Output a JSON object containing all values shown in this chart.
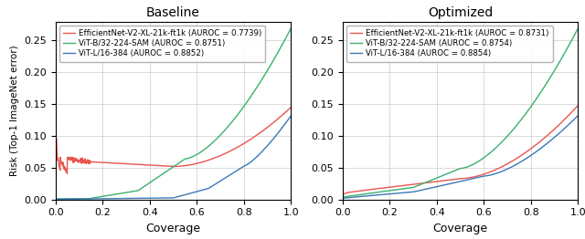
{
  "title_left": "Baseline",
  "title_right": "Optimized",
  "xlabel": "Coverage",
  "ylabel": "Risk (Top-1 ImageNet error)",
  "ylim": [
    0,
    0.28
  ],
  "xlim": [
    0.0,
    1.0
  ],
  "yticks": [
    0.0,
    0.05,
    0.1,
    0.15,
    0.2,
    0.25
  ],
  "xticks": [
    0.0,
    0.2,
    0.4,
    0.6,
    0.8,
    1.0
  ],
  "colors": {
    "red": "#e8554e",
    "green": "#3ab06e",
    "blue": "#3a78b5"
  },
  "baseline_legend": [
    "EfficientNet-V2-XL-21k-ft1k (AUROC = 0.7739)",
    "ViT-B/32-224-SAM (AUROC = 0.8751)",
    "ViT-L/16-384 (AUROC = 0.8852)"
  ],
  "optimized_legend": [
    "EfficientNet-V2-XL-21k-ft1k (AUROC = 0.8731)",
    "ViT-B/32-224-SAM (AUROC = 0.8754)",
    "ViT-L/16-384 (AUROC = 0.8854)"
  ]
}
